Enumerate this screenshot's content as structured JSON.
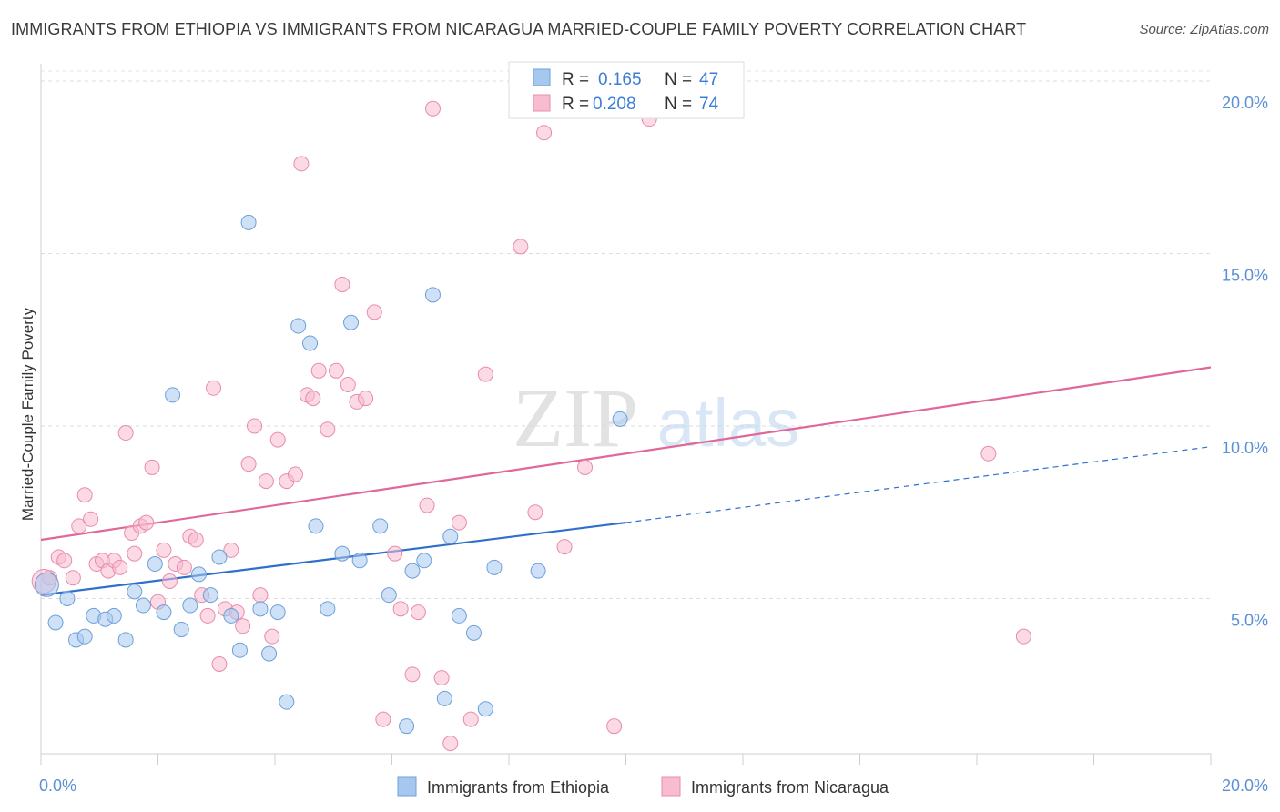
{
  "title": "IMMIGRANTS FROM ETHIOPIA VS IMMIGRANTS FROM NICARAGUA MARRIED-COUPLE FAMILY POVERTY CORRELATION CHART",
  "source": "Source: ZipAtlas.com",
  "watermark": {
    "zip": "ZIP",
    "atlas": "atlas"
  },
  "chart_data": {
    "type": "scatter",
    "title": "IMMIGRANTS FROM ETHIOPIA VS IMMIGRANTS FROM NICARAGUA MARRIED-COUPLE FAMILY POVERTY CORRELATION CHART",
    "xlabel": "",
    "ylabel": "Married-Couple Family Poverty",
    "xlim": [
      0,
      20
    ],
    "ylim": [
      0.5,
      20.5
    ],
    "x_tick_labels": [
      {
        "value": 0,
        "label": "0.0%"
      },
      {
        "value": 20,
        "label": "20.0%"
      }
    ],
    "x_tick_marks": [
      0,
      2,
      4,
      6,
      8,
      10,
      12,
      14,
      16,
      18,
      20
    ],
    "y_ticks": [
      {
        "value": 5,
        "label": "5.0%"
      },
      {
        "value": 10,
        "label": "10.0%"
      },
      {
        "value": 15,
        "label": "15.0%"
      },
      {
        "value": 20,
        "label": "20.0%"
      }
    ],
    "grid": true,
    "legend": {
      "position": "top-center",
      "entries": [
        {
          "r_label": "R =",
          "r_value": "0.165",
          "n_label": "N =",
          "n_value": "47"
        },
        {
          "r_label": "R =",
          "r_value": "0.208",
          "n_label": "N =",
          "n_value": "74"
        }
      ]
    },
    "series": [
      {
        "name": "Immigrants from Ethiopia",
        "color": "#a7c8ee",
        "edge": "#6d9fd9",
        "trend_color": "#2f6fcc",
        "trend": {
          "x0": 0,
          "y0": 5.1,
          "x1": 10,
          "y1": 7.2,
          "dashed_to_x": 20,
          "dashed_to_y": 9.4
        },
        "points": [
          [
            0.1,
            5.4
          ],
          [
            0.25,
            4.3
          ],
          [
            0.45,
            5.0
          ],
          [
            0.6,
            3.8
          ],
          [
            0.75,
            3.9
          ],
          [
            0.9,
            4.5
          ],
          [
            1.1,
            4.4
          ],
          [
            1.25,
            4.5
          ],
          [
            1.45,
            3.8
          ],
          [
            1.6,
            5.2
          ],
          [
            1.75,
            4.8
          ],
          [
            1.95,
            6.0
          ],
          [
            2.1,
            4.6
          ],
          [
            2.25,
            10.9
          ],
          [
            2.4,
            4.1
          ],
          [
            2.55,
            4.8
          ],
          [
            2.7,
            5.7
          ],
          [
            2.9,
            5.1
          ],
          [
            3.05,
            6.2
          ],
          [
            3.25,
            4.5
          ],
          [
            3.4,
            3.5
          ],
          [
            3.55,
            15.9
          ],
          [
            3.75,
            4.7
          ],
          [
            3.9,
            3.4
          ],
          [
            4.05,
            4.6
          ],
          [
            4.2,
            2.0
          ],
          [
            4.4,
            12.9
          ],
          [
            4.6,
            12.4
          ],
          [
            4.7,
            7.1
          ],
          [
            4.9,
            4.7
          ],
          [
            5.15,
            6.3
          ],
          [
            5.3,
            13.0
          ],
          [
            5.45,
            6.1
          ],
          [
            5.8,
            7.1
          ],
          [
            5.95,
            5.1
          ],
          [
            6.25,
            1.3
          ],
          [
            6.35,
            5.8
          ],
          [
            6.55,
            6.1
          ],
          [
            6.7,
            13.8
          ],
          [
            6.9,
            2.1
          ],
          [
            7.0,
            6.8
          ],
          [
            7.15,
            4.5
          ],
          [
            7.4,
            4.0
          ],
          [
            7.6,
            1.8
          ],
          [
            7.75,
            5.9
          ],
          [
            8.5,
            5.8
          ],
          [
            9.9,
            10.2
          ]
        ]
      },
      {
        "name": "Immigrants from Nicaragua",
        "color": "#f7bcd0",
        "edge": "#e98bab",
        "trend_color": "#e0679a",
        "trend": {
          "x0": 0,
          "y0": 6.7,
          "x1": 20,
          "y1": 11.7
        },
        "points": [
          [
            0.15,
            5.6
          ],
          [
            0.3,
            6.2
          ],
          [
            0.4,
            6.1
          ],
          [
            0.55,
            5.6
          ],
          [
            0.65,
            7.1
          ],
          [
            0.75,
            8.0
          ],
          [
            0.85,
            7.3
          ],
          [
            0.95,
            6.0
          ],
          [
            1.05,
            6.1
          ],
          [
            1.15,
            5.8
          ],
          [
            1.25,
            6.1
          ],
          [
            1.35,
            5.9
          ],
          [
            1.45,
            9.8
          ],
          [
            1.55,
            6.9
          ],
          [
            1.6,
            6.3
          ],
          [
            1.7,
            7.1
          ],
          [
            1.8,
            7.2
          ],
          [
            1.9,
            8.8
          ],
          [
            2.0,
            4.9
          ],
          [
            2.1,
            6.4
          ],
          [
            2.2,
            5.5
          ],
          [
            2.3,
            6.0
          ],
          [
            2.45,
            5.9
          ],
          [
            2.55,
            6.8
          ],
          [
            2.65,
            6.7
          ],
          [
            2.75,
            5.1
          ],
          [
            2.85,
            4.5
          ],
          [
            2.95,
            11.1
          ],
          [
            3.05,
            3.1
          ],
          [
            3.15,
            4.7
          ],
          [
            3.25,
            6.4
          ],
          [
            3.35,
            4.6
          ],
          [
            3.45,
            4.2
          ],
          [
            3.55,
            8.9
          ],
          [
            3.65,
            10.0
          ],
          [
            3.75,
            5.1
          ],
          [
            3.85,
            8.4
          ],
          [
            3.95,
            3.9
          ],
          [
            4.05,
            9.6
          ],
          [
            4.2,
            8.4
          ],
          [
            4.35,
            8.6
          ],
          [
            4.45,
            17.6
          ],
          [
            4.55,
            10.9
          ],
          [
            4.65,
            10.8
          ],
          [
            4.75,
            11.6
          ],
          [
            4.9,
            9.9
          ],
          [
            5.05,
            11.6
          ],
          [
            5.15,
            14.1
          ],
          [
            5.25,
            11.2
          ],
          [
            5.4,
            10.7
          ],
          [
            5.55,
            10.8
          ],
          [
            5.7,
            13.3
          ],
          [
            5.85,
            1.5
          ],
          [
            6.05,
            6.3
          ],
          [
            6.15,
            4.7
          ],
          [
            6.35,
            2.8
          ],
          [
            6.45,
            4.6
          ],
          [
            6.6,
            7.7
          ],
          [
            6.7,
            19.2
          ],
          [
            6.85,
            2.7
          ],
          [
            7.0,
            0.8
          ],
          [
            7.15,
            7.2
          ],
          [
            7.35,
            1.5
          ],
          [
            7.6,
            11.5
          ],
          [
            8.2,
            15.2
          ],
          [
            8.45,
            7.5
          ],
          [
            8.6,
            18.5
          ],
          [
            8.95,
            6.5
          ],
          [
            9.3,
            8.8
          ],
          [
            9.8,
            1.3
          ],
          [
            10.4,
            18.9
          ],
          [
            16.2,
            9.2
          ],
          [
            16.8,
            3.9
          ],
          [
            0.05,
            5.5
          ]
        ]
      }
    ]
  },
  "bottom_legend": [
    {
      "label": "Immigrants from Ethiopia"
    },
    {
      "label": "Immigrants from Nicaragua"
    }
  ]
}
